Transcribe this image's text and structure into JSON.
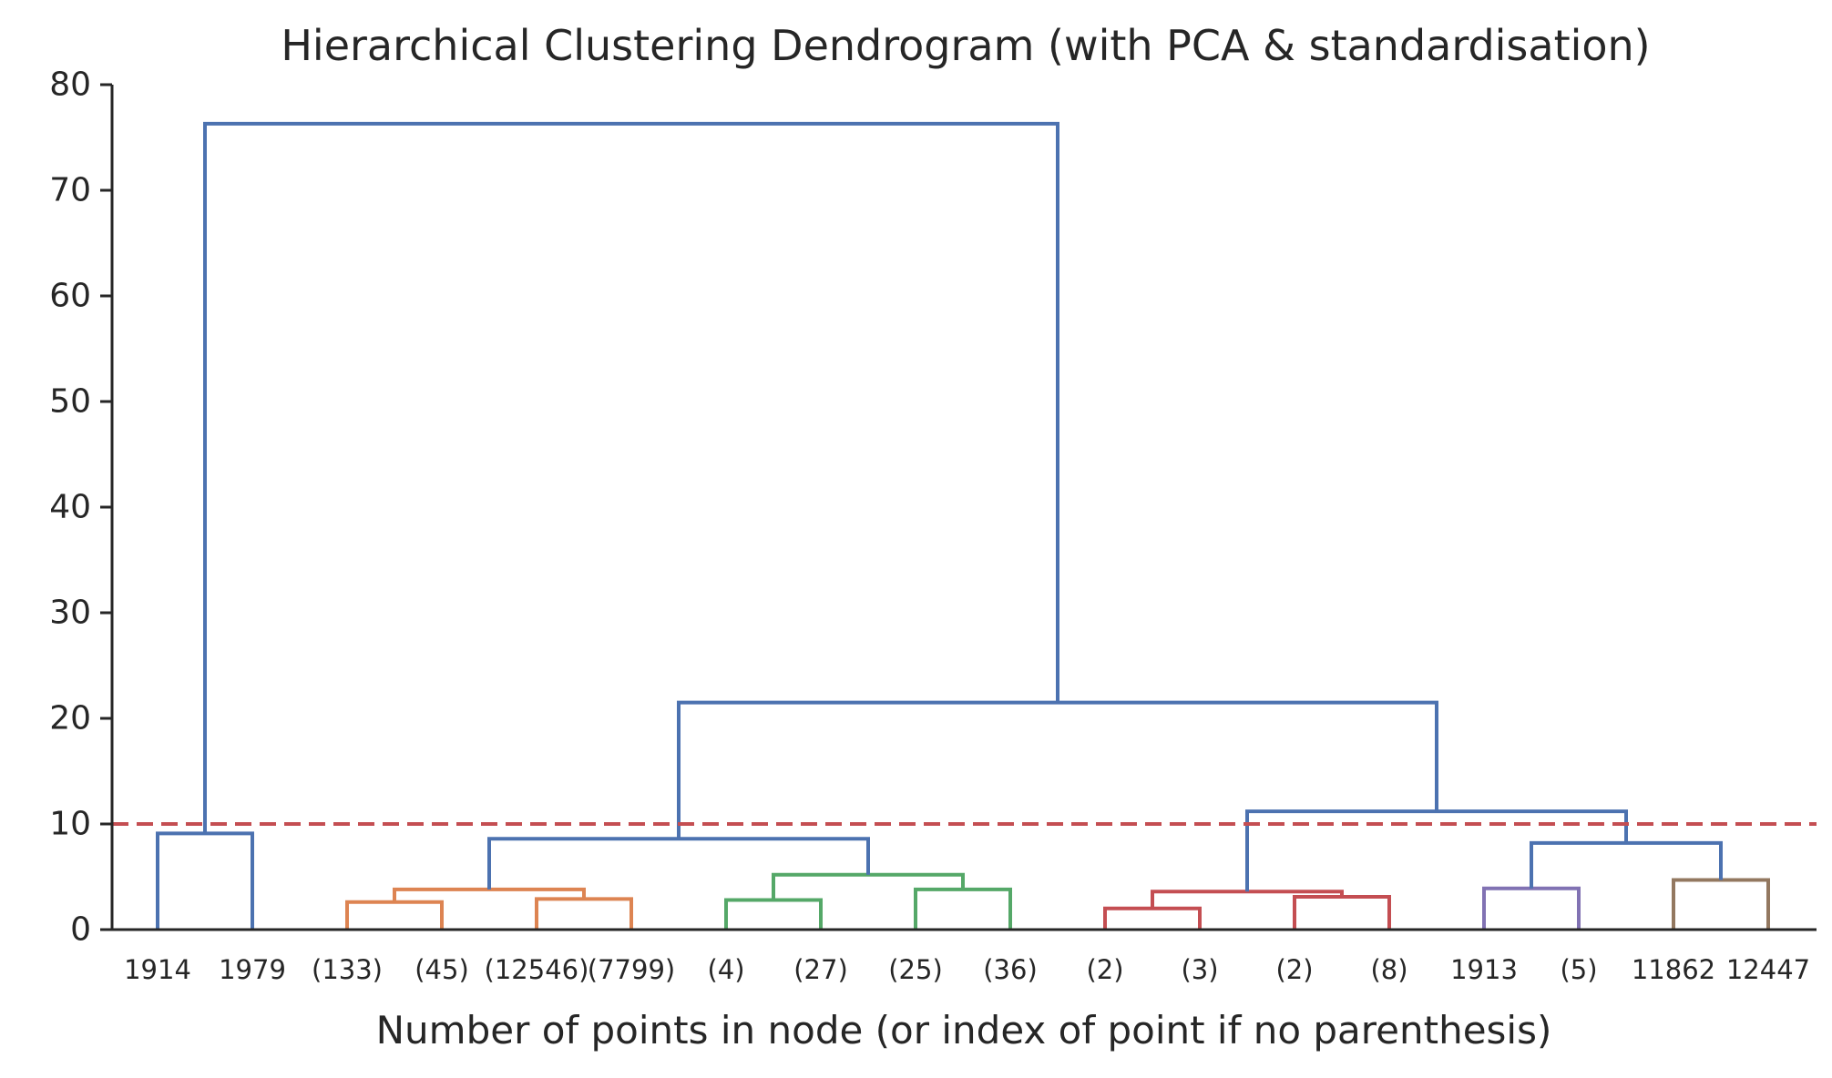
{
  "chart_data": {
    "type": "dendrogram",
    "title": "Hierarchical Clustering Dendrogram (with PCA & standardisation)",
    "xlabel": "Number of points in node (or index of point if no parenthesis)",
    "ylabel": "",
    "ylim": [
      0,
      80
    ],
    "yticks": [
      0,
      10,
      20,
      30,
      40,
      50,
      60,
      70,
      80
    ],
    "grid": false,
    "leaf_labels": [
      "1914",
      "1979",
      "(133)",
      "(45)",
      "(12546)",
      "(7799)",
      "(4)",
      "(27)",
      "(25)",
      "(36)",
      "(2)",
      "(3)",
      "(2)",
      "(8)",
      "1913",
      "(5)",
      "11862",
      "12447"
    ],
    "threshold": {
      "value": 10,
      "color": "#C44E52",
      "style": "dashed"
    },
    "colors": {
      "C0": "#4C72B0",
      "C1": "#DD8452",
      "C2": "#55A868",
      "C3": "#C44E52",
      "C4": "#8172B3",
      "C5": "#937860"
    },
    "links": [
      {
        "x": [
          0,
          0,
          1,
          1
        ],
        "y": [
          0,
          9.1,
          9.1,
          0
        ],
        "color": "C0"
      },
      {
        "x": [
          2,
          2,
          3,
          3
        ],
        "y": [
          0,
          2.6,
          2.6,
          0
        ],
        "color": "C1"
      },
      {
        "x": [
          4,
          4,
          5,
          5
        ],
        "y": [
          0,
          2.9,
          2.9,
          0
        ],
        "color": "C1"
      },
      {
        "x": [
          2.5,
          2.5,
          4.5,
          4.5
        ],
        "y": [
          2.6,
          3.8,
          3.8,
          2.9
        ],
        "color": "C1"
      },
      {
        "x": [
          6,
          6,
          7,
          7
        ],
        "y": [
          0,
          2.8,
          2.8,
          0
        ],
        "color": "C2"
      },
      {
        "x": [
          8,
          8,
          9,
          9
        ],
        "y": [
          0,
          3.8,
          3.8,
          0
        ],
        "color": "C2"
      },
      {
        "x": [
          6.5,
          6.5,
          8.5,
          8.5
        ],
        "y": [
          2.8,
          5.2,
          5.2,
          3.8
        ],
        "color": "C2"
      },
      {
        "x": [
          3.5,
          3.5,
          7.5,
          7.5
        ],
        "y": [
          3.8,
          8.6,
          8.6,
          5.2
        ],
        "color": "C0"
      },
      {
        "x": [
          10,
          10,
          11,
          11
        ],
        "y": [
          0,
          2.0,
          2.0,
          0
        ],
        "color": "C3"
      },
      {
        "x": [
          12,
          12,
          13,
          13
        ],
        "y": [
          0,
          3.1,
          3.1,
          0
        ],
        "color": "C3"
      },
      {
        "x": [
          10.5,
          10.5,
          12.5,
          12.5
        ],
        "y": [
          2.0,
          3.6,
          3.6,
          3.1
        ],
        "color": "C3"
      },
      {
        "x": [
          14,
          14,
          15,
          15
        ],
        "y": [
          0,
          3.9,
          3.9,
          0
        ],
        "color": "C4"
      },
      {
        "x": [
          16,
          16,
          17,
          17
        ],
        "y": [
          0,
          4.7,
          4.7,
          0
        ],
        "color": "C5"
      },
      {
        "x": [
          14.5,
          14.5,
          16.5,
          16.5
        ],
        "y": [
          3.9,
          8.2,
          8.2,
          4.7
        ],
        "color": "C0"
      },
      {
        "x": [
          11.5,
          11.5,
          15.5,
          15.5
        ],
        "y": [
          3.6,
          11.2,
          11.2,
          8.2
        ],
        "color": "C0"
      },
      {
        "x": [
          5.5,
          5.5,
          13.5,
          13.5
        ],
        "y": [
          8.6,
          21.5,
          21.5,
          11.2
        ],
        "color": "C0"
      },
      {
        "x": [
          0.5,
          0.5,
          9.5,
          9.5
        ],
        "y": [
          9.1,
          76.3,
          76.3,
          21.5
        ],
        "color": "C0"
      }
    ]
  }
}
